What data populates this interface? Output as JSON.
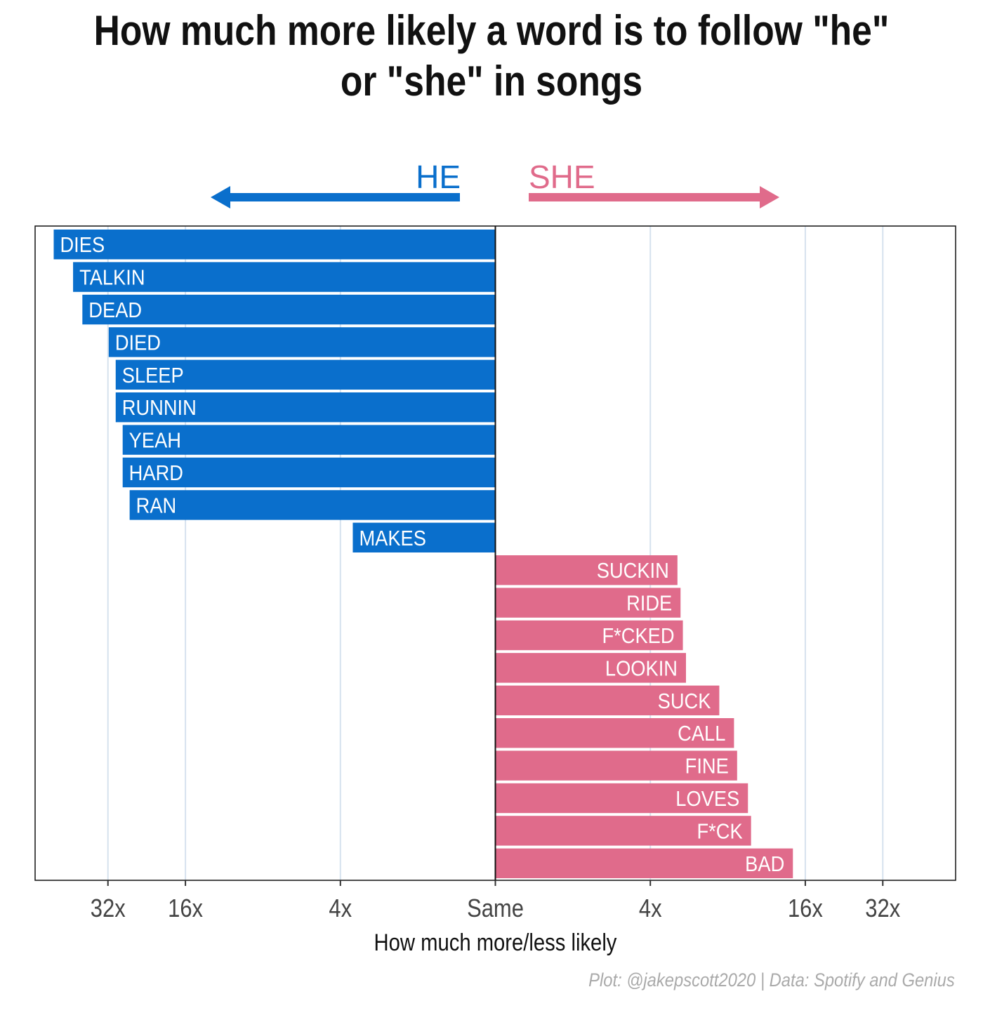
{
  "chart_data": {
    "type": "bar",
    "title_lines": [
      "How much more likely a word is to follow \"he\"",
      "or \"she\" in songs"
    ],
    "xlabel": "How much more/less likely",
    "x_tick_labels": [
      "32x",
      "16x",
      "4x",
      "Same",
      "4x",
      "16x",
      "32x"
    ],
    "x_ticks_log2_signed": [
      -5,
      -4,
      -2,
      0,
      2,
      4,
      5
    ],
    "x_scale": "signed log2 ratio",
    "x_range_log2": [
      -5.94,
      5.94
    ],
    "legend": {
      "he_label": "HE",
      "she_label": "SHE",
      "he_color": "#0a6fcc",
      "she_color": "#e06b8b"
    },
    "he_words": [
      {
        "word": "DIES",
        "ratio_log2": 5.7
      },
      {
        "word": "TALKIN",
        "ratio_log2": 5.45
      },
      {
        "word": "DEAD",
        "ratio_log2": 5.33
      },
      {
        "word": "DIED",
        "ratio_log2": 4.99
      },
      {
        "word": "SLEEP",
        "ratio_log2": 4.9
      },
      {
        "word": "RUNNIN",
        "ratio_log2": 4.9
      },
      {
        "word": "YEAH",
        "ratio_log2": 4.81
      },
      {
        "word": "HARD",
        "ratio_log2": 4.81
      },
      {
        "word": "RAN",
        "ratio_log2": 4.72
      },
      {
        "word": "MAKES",
        "ratio_log2": 1.84
      }
    ],
    "she_words": [
      {
        "word": "SUCKIN",
        "ratio_log2": 2.35
      },
      {
        "word": "RIDE",
        "ratio_log2": 2.39
      },
      {
        "word": "F*CKED",
        "ratio_log2": 2.42
      },
      {
        "word": "LOOKIN",
        "ratio_log2": 2.46
      },
      {
        "word": "SUCK",
        "ratio_log2": 2.89
      },
      {
        "word": "CALL",
        "ratio_log2": 3.08
      },
      {
        "word": "FINE",
        "ratio_log2": 3.12
      },
      {
        "word": "LOVES",
        "ratio_log2": 3.26
      },
      {
        "word": "F*CK",
        "ratio_log2": 3.3
      },
      {
        "word": "BAD",
        "ratio_log2": 3.84
      }
    ],
    "grid": true
  },
  "caption": "Plot: @jakepscott2020 | Data: Spotify and Genius"
}
